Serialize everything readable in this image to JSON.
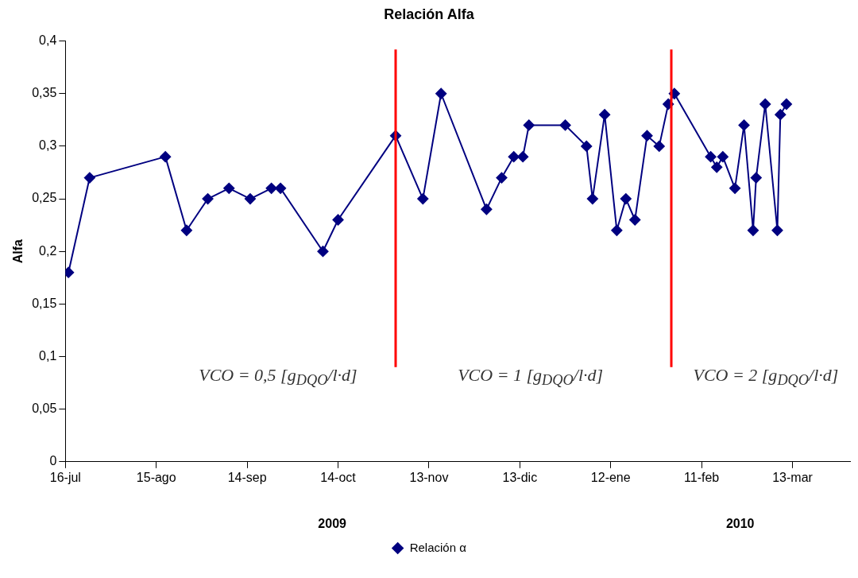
{
  "chart_data": {
    "type": "line",
    "title": "Relación Alfa",
    "ylabel": "Alfa",
    "x": [
      "2009-07-17",
      "2009-07-24",
      "2009-08-18",
      "2009-08-25",
      "2009-09-01",
      "2009-09-08",
      "2009-09-15",
      "2009-09-22",
      "2009-09-25",
      "2009-10-09",
      "2009-10-14",
      "2009-11-02",
      "2009-11-11",
      "2009-11-17",
      "2009-12-02",
      "2009-12-07",
      "2009-12-11",
      "2009-12-14",
      "2009-12-16",
      "2009-12-28",
      "2010-01-04",
      "2010-01-06",
      "2010-01-10",
      "2010-01-14",
      "2010-01-17",
      "2010-01-20",
      "2010-01-24",
      "2010-01-28",
      "2010-01-31",
      "2010-02-02",
      "2010-02-14",
      "2010-02-16",
      "2010-02-18",
      "2010-02-22",
      "2010-02-25",
      "2010-02-28",
      "2010-03-01",
      "2010-03-04",
      "2010-03-08",
      "2010-03-09",
      "2010-03-11"
    ],
    "series": [
      {
        "name": "Relación α",
        "color": "#000080",
        "values": [
          0.18,
          0.27,
          0.29,
          0.22,
          0.25,
          0.26,
          0.25,
          0.26,
          0.26,
          0.2,
          0.23,
          0.31,
          0.25,
          0.35,
          0.24,
          0.27,
          0.29,
          0.29,
          0.32,
          0.32,
          0.3,
          0.25,
          0.33,
          0.22,
          0.25,
          0.23,
          0.31,
          0.3,
          0.34,
          0.35,
          0.29,
          0.28,
          0.29,
          0.26,
          0.32,
          0.22,
          0.27,
          0.34,
          0.22,
          0.33,
          0.34
        ]
      }
    ],
    "xlim": [
      "2009-07-16",
      "2010-04-01"
    ],
    "xticks": [
      {
        "value": "2009-07-16",
        "label": "16-jul"
      },
      {
        "value": "2009-08-15",
        "label": "15-ago"
      },
      {
        "value": "2009-09-14",
        "label": "14-sep"
      },
      {
        "value": "2009-10-14",
        "label": "14-oct"
      },
      {
        "value": "2009-11-13",
        "label": "13-nov"
      },
      {
        "value": "2009-12-13",
        "label": "13-dic"
      },
      {
        "value": "2010-01-12",
        "label": "12-ene"
      },
      {
        "value": "2010-02-11",
        "label": "11-feb"
      },
      {
        "value": "2010-03-13",
        "label": "13-mar"
      }
    ],
    "ylim": [
      0,
      0.4
    ],
    "yticks": [
      0,
      {
        "value": 0.05,
        "label": "0,05"
      },
      {
        "value": 0.1,
        "label": "0,1"
      },
      {
        "value": 0.15,
        "label": "0,15"
      },
      {
        "value": 0.2,
        "label": "0,2"
      },
      {
        "value": 0.25,
        "label": "0,25"
      },
      {
        "value": 0.3,
        "label": "0,3"
      },
      {
        "value": 0.35,
        "label": "0,35"
      },
      {
        "value": 0.4,
        "label": "0,4"
      }
    ],
    "ref_lines": [
      {
        "axis": "x",
        "value": "2009-11-02",
        "color": "#ff0000"
      },
      {
        "axis": "x",
        "value": "2010-02-01",
        "color": "#ff0000"
      }
    ],
    "annotations": [
      "VCO = 0,5 [g$_{DQO}$/l·d]",
      "VCO = 1 [g$_{DQO}$/l·d]",
      "VCO = 2 [g$_{DQO}$/l·d]",
      "2009",
      "2010"
    ],
    "grid": false,
    "legend": "bottom",
    "marker": "diamond",
    "line_style": "solid"
  }
}
